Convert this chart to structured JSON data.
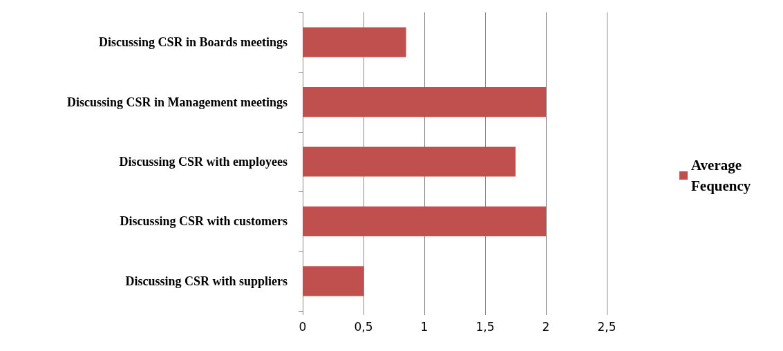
{
  "chart_data": {
    "type": "bar",
    "orientation": "horizontal",
    "categories": [
      "Discussing CSR in Boards meetings",
      "Discussing CSR in Management meetings",
      "Discussing CSR with employees",
      "Discussing CSR with customers",
      "Discussing CSR with suppliers"
    ],
    "series": [
      {
        "name": "Average Fequency",
        "color": "#c0504d",
        "values": [
          0.85,
          2,
          1.75,
          2,
          0.5
        ]
      }
    ],
    "xlim": [
      0,
      2.5
    ],
    "xticks": [
      0,
      {
        "value": 0.5,
        "label": "0,5"
      },
      1,
      {
        "value": 1.5,
        "label": "1,5"
      },
      2,
      {
        "value": 2.5,
        "label": "2,5"
      }
    ],
    "grid": "x",
    "legend": "right"
  }
}
